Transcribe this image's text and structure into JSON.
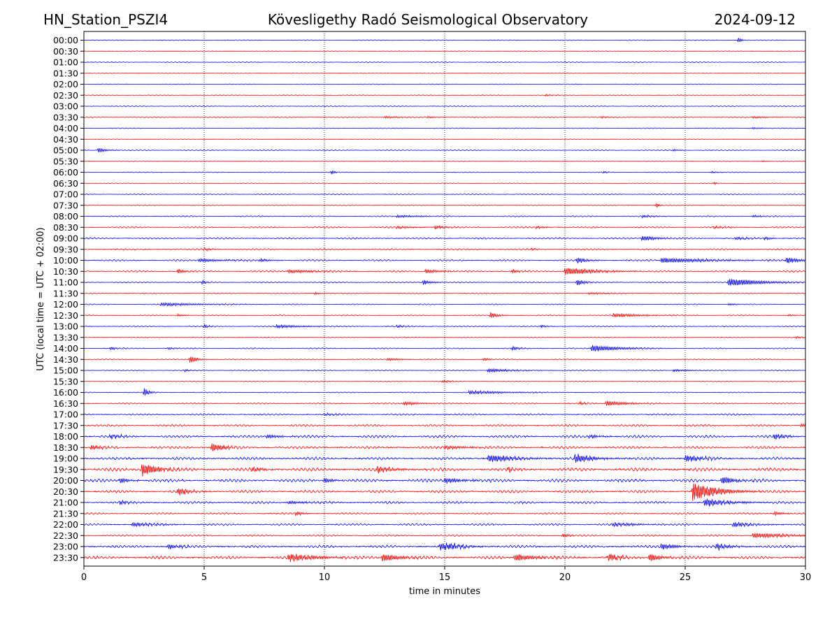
{
  "chart_data": {
    "type": "line",
    "title_left": "HN_Station_PSZI4",
    "title_center": "Kövesligethy Radó Seismological Observatory",
    "title_right": "2024-09-12",
    "xlabel": "time in minutes",
    "ylabel": "UTC (local time = UTC + 02:00)",
    "xlim": [
      0,
      30
    ],
    "x_ticks": [
      0,
      5,
      10,
      15,
      20,
      25,
      30
    ],
    "x_grid_minutes": [
      5,
      10,
      15,
      20,
      25
    ],
    "rows": [
      {
        "label": "00:00",
        "color": "#0000ff",
        "noise": 0.5,
        "events": [
          {
            "t": 27.2,
            "amp": 4,
            "dur": 0.15
          }
        ]
      },
      {
        "label": "00:30",
        "color": "#ff0000",
        "noise": 0.4,
        "events": []
      },
      {
        "label": "01:00",
        "color": "#0000ff",
        "noise": 0.5,
        "events": []
      },
      {
        "label": "01:30",
        "color": "#ff0000",
        "noise": 0.4,
        "events": []
      },
      {
        "label": "02:00",
        "color": "#0000ff",
        "noise": 0.4,
        "events": []
      },
      {
        "label": "02:30",
        "color": "#ff0000",
        "noise": 0.5,
        "events": [
          {
            "t": 19.2,
            "amp": 1.5,
            "dur": 0.3
          }
        ]
      },
      {
        "label": "03:00",
        "color": "#0000ff",
        "noise": 0.5,
        "events": []
      },
      {
        "label": "03:30",
        "color": "#ff0000",
        "noise": 0.6,
        "events": [
          {
            "t": 12.5,
            "amp": 1.5,
            "dur": 0.8
          },
          {
            "t": 14.3,
            "amp": 1.5,
            "dur": 0.4
          },
          {
            "t": 21.5,
            "amp": 1.5,
            "dur": 0.4
          },
          {
            "t": 27.8,
            "amp": 1.5,
            "dur": 0.8
          }
        ]
      },
      {
        "label": "04:00",
        "color": "#0000ff",
        "noise": 0.5,
        "events": [
          {
            "t": 27.8,
            "amp": 1.2,
            "dur": 0.5
          }
        ]
      },
      {
        "label": "04:30",
        "color": "#ff0000",
        "noise": 0.4,
        "events": []
      },
      {
        "label": "05:00",
        "color": "#0000ff",
        "noise": 0.6,
        "events": [
          {
            "t": 0.6,
            "amp": 4,
            "dur": 0.3
          },
          {
            "t": 24.5,
            "amp": 1.5,
            "dur": 0.3
          }
        ]
      },
      {
        "label": "05:30",
        "color": "#ff0000",
        "noise": 0.4,
        "events": [
          {
            "t": 28.2,
            "amp": 1.2,
            "dur": 0.2
          }
        ]
      },
      {
        "label": "06:00",
        "color": "#0000ff",
        "noise": 0.5,
        "events": [
          {
            "t": 10.3,
            "amp": 4,
            "dur": 0.12
          },
          {
            "t": 21.6,
            "amp": 2,
            "dur": 0.15
          },
          {
            "t": 26.1,
            "amp": 1.5,
            "dur": 0.3
          }
        ]
      },
      {
        "label": "06:30",
        "color": "#ff0000",
        "noise": 0.4,
        "events": [
          {
            "t": 26.2,
            "amp": 2,
            "dur": 0.12
          }
        ]
      },
      {
        "label": "07:00",
        "color": "#0000ff",
        "noise": 0.6,
        "events": []
      },
      {
        "label": "07:30",
        "color": "#ff0000",
        "noise": 0.5,
        "events": [
          {
            "t": 23.8,
            "amp": 4,
            "dur": 0.12
          }
        ]
      },
      {
        "label": "08:00",
        "color": "#0000ff",
        "noise": 0.7,
        "events": [
          {
            "t": 13.0,
            "amp": 2,
            "dur": 1.0
          },
          {
            "t": 23.2,
            "amp": 1.8,
            "dur": 0.6
          },
          {
            "t": 27.8,
            "amp": 1.8,
            "dur": 0.4
          }
        ]
      },
      {
        "label": "08:30",
        "color": "#ff0000",
        "noise": 0.9,
        "events": [
          {
            "t": 13.0,
            "amp": 2,
            "dur": 0.8
          },
          {
            "t": 14.6,
            "amp": 2.5,
            "dur": 0.5
          },
          {
            "t": 18.8,
            "amp": 2,
            "dur": 0.4
          },
          {
            "t": 26.2,
            "amp": 2,
            "dur": 0.5
          }
        ]
      },
      {
        "label": "09:00",
        "color": "#0000ff",
        "noise": 1.0,
        "events": [
          {
            "t": 23.2,
            "amp": 4,
            "dur": 0.6
          },
          {
            "t": 27.1,
            "amp": 2.5,
            "dur": 0.5
          },
          {
            "t": 28.3,
            "amp": 2.5,
            "dur": 0.3
          }
        ]
      },
      {
        "label": "09:30",
        "color": "#ff0000",
        "noise": 0.9,
        "events": [
          {
            "t": 5.0,
            "amp": 2,
            "dur": 0.3
          },
          {
            "t": 18.6,
            "amp": 2,
            "dur": 0.2
          }
        ]
      },
      {
        "label": "10:00",
        "color": "#0000ff",
        "noise": 1.0,
        "events": [
          {
            "t": 4.8,
            "amp": 2.5,
            "dur": 1.2
          },
          {
            "t": 7.3,
            "amp": 2.5,
            "dur": 0.4
          },
          {
            "t": 20.5,
            "amp": 5,
            "dur": 0.4
          },
          {
            "t": 24.0,
            "amp": 4,
            "dur": 2.0
          },
          {
            "t": 29.2,
            "amp": 5,
            "dur": 0.6
          }
        ]
      },
      {
        "label": "10:30",
        "color": "#ff0000",
        "noise": 1.0,
        "events": [
          {
            "t": 3.9,
            "amp": 4,
            "dur": 0.3
          },
          {
            "t": 8.5,
            "amp": 2.5,
            "dur": 1.4
          },
          {
            "t": 14.2,
            "amp": 3,
            "dur": 0.6
          },
          {
            "t": 17.8,
            "amp": 3,
            "dur": 0.3
          },
          {
            "t": 20.0,
            "amp": 6,
            "dur": 1.2
          }
        ]
      },
      {
        "label": "11:00",
        "color": "#0000ff",
        "noise": 0.7,
        "events": [
          {
            "t": 4.9,
            "amp": 3,
            "dur": 0.2
          },
          {
            "t": 14.1,
            "amp": 4,
            "dur": 0.3
          },
          {
            "t": 20.5,
            "amp": 5,
            "dur": 0.3
          },
          {
            "t": 26.8,
            "amp": 6,
            "dur": 1.4
          }
        ]
      },
      {
        "label": "11:30",
        "color": "#ff0000",
        "noise": 0.6,
        "events": [
          {
            "t": 9.6,
            "amp": 2,
            "dur": 0.2
          },
          {
            "t": 21.0,
            "amp": 1.5,
            "dur": 1.0
          }
        ]
      },
      {
        "label": "12:00",
        "color": "#0000ff",
        "noise": 0.6,
        "events": [
          {
            "t": 3.2,
            "amp": 2.5,
            "dur": 1.8
          },
          {
            "t": 26.8,
            "amp": 1.5,
            "dur": 0.3
          }
        ]
      },
      {
        "label": "12:30",
        "color": "#ff0000",
        "noise": 0.6,
        "events": [
          {
            "t": 3.9,
            "amp": 2,
            "dur": 0.3
          },
          {
            "t": 16.9,
            "amp": 6,
            "dur": 0.25
          },
          {
            "t": 22.0,
            "amp": 3,
            "dur": 1.2
          },
          {
            "t": 29.3,
            "amp": 1.5,
            "dur": 0.3
          }
        ]
      },
      {
        "label": "13:00",
        "color": "#0000ff",
        "noise": 0.7,
        "events": [
          {
            "t": 5.0,
            "amp": 3,
            "dur": 0.2
          },
          {
            "t": 8.0,
            "amp": 2.5,
            "dur": 1.2
          },
          {
            "t": 13.0,
            "amp": 2,
            "dur": 0.4
          },
          {
            "t": 19.0,
            "amp": 2.5,
            "dur": 0.2
          }
        ]
      },
      {
        "label": "13:30",
        "color": "#ff0000",
        "noise": 0.5,
        "events": [
          {
            "t": 29.6,
            "amp": 1.5,
            "dur": 0.5
          }
        ]
      },
      {
        "label": "14:00",
        "color": "#0000ff",
        "noise": 0.7,
        "events": [
          {
            "t": 1.1,
            "amp": 3,
            "dur": 0.2
          },
          {
            "t": 3.5,
            "amp": 2,
            "dur": 0.2
          },
          {
            "t": 17.8,
            "amp": 3,
            "dur": 0.3
          },
          {
            "t": 21.1,
            "amp": 5,
            "dur": 1.2
          }
        ]
      },
      {
        "label": "14:30",
        "color": "#ff0000",
        "noise": 0.6,
        "events": [
          {
            "t": 4.4,
            "amp": 7,
            "dur": 0.25
          },
          {
            "t": 12.6,
            "amp": 2,
            "dur": 0.8
          },
          {
            "t": 16.6,
            "amp": 2,
            "dur": 0.3
          }
        ]
      },
      {
        "label": "15:00",
        "color": "#0000ff",
        "noise": 0.6,
        "events": [
          {
            "t": 4.2,
            "amp": 1.8,
            "dur": 0.3
          },
          {
            "t": 16.8,
            "amp": 3,
            "dur": 1.0
          },
          {
            "t": 24.5,
            "amp": 2,
            "dur": 0.6
          }
        ]
      },
      {
        "label": "15:30",
        "color": "#ff0000",
        "noise": 0.5,
        "events": [
          {
            "t": 14.9,
            "amp": 2,
            "dur": 0.4
          }
        ]
      },
      {
        "label": "16:00",
        "color": "#0000ff",
        "noise": 0.6,
        "events": [
          {
            "t": 2.5,
            "amp": 7,
            "dur": 0.2
          },
          {
            "t": 16.0,
            "amp": 2.5,
            "dur": 1.8
          }
        ]
      },
      {
        "label": "16:30",
        "color": "#ff0000",
        "noise": 0.8,
        "events": [
          {
            "t": 13.3,
            "amp": 3,
            "dur": 0.7
          },
          {
            "t": 20.6,
            "amp": 2.5,
            "dur": 0.3
          },
          {
            "t": 21.7,
            "amp": 4,
            "dur": 0.9
          }
        ]
      },
      {
        "label": "17:00",
        "color": "#0000ff",
        "noise": 1.0,
        "events": [
          {
            "t": 10.0,
            "amp": 2,
            "dur": 0.4
          }
        ]
      },
      {
        "label": "17:30",
        "color": "#ff0000",
        "noise": 1.2,
        "events": [
          {
            "t": 29.8,
            "amp": 3,
            "dur": 0.4
          }
        ]
      },
      {
        "label": "18:00",
        "color": "#0000ff",
        "noise": 1.5,
        "events": [
          {
            "t": 1.1,
            "amp": 3,
            "dur": 0.6
          },
          {
            "t": 7.6,
            "amp": 3,
            "dur": 0.6
          },
          {
            "t": 21.0,
            "amp": 3,
            "dur": 0.5
          },
          {
            "t": 28.7,
            "amp": 5,
            "dur": 0.5
          }
        ]
      },
      {
        "label": "18:30",
        "color": "#ff0000",
        "noise": 1.5,
        "events": [
          {
            "t": 0.3,
            "amp": 4,
            "dur": 0.4
          },
          {
            "t": 5.3,
            "amp": 7,
            "dur": 0.6
          },
          {
            "t": 5.9,
            "amp": 4,
            "dur": 0.4
          },
          {
            "t": 15.0,
            "amp": 3,
            "dur": 1.0
          }
        ]
      },
      {
        "label": "19:00",
        "color": "#0000ff",
        "noise": 1.6,
        "events": [
          {
            "t": 16.8,
            "amp": 6,
            "dur": 1.2
          },
          {
            "t": 20.4,
            "amp": 7,
            "dur": 0.8
          },
          {
            "t": 25.0,
            "amp": 5,
            "dur": 0.8
          }
        ]
      },
      {
        "label": "19:30",
        "color": "#ff0000",
        "noise": 2.0,
        "events": [
          {
            "t": 2.4,
            "amp": 11,
            "dur": 0.6
          },
          {
            "t": 7.0,
            "amp": 4,
            "dur": 0.5
          },
          {
            "t": 12.2,
            "amp": 5,
            "dur": 0.6
          },
          {
            "t": 17.6,
            "amp": 4,
            "dur": 0.3
          }
        ]
      },
      {
        "label": "20:00",
        "color": "#0000ff",
        "noise": 1.8,
        "events": [
          {
            "t": 1.5,
            "amp": 4,
            "dur": 0.4
          },
          {
            "t": 10.0,
            "amp": 4,
            "dur": 0.4
          },
          {
            "t": 15.0,
            "amp": 4,
            "dur": 1.0
          },
          {
            "t": 26.5,
            "amp": 6,
            "dur": 0.6
          }
        ]
      },
      {
        "label": "20:30",
        "color": "#ff0000",
        "noise": 1.6,
        "events": [
          {
            "t": 3.9,
            "amp": 6,
            "dur": 0.5
          },
          {
            "t": 25.3,
            "amp": 14,
            "dur": 1.0
          }
        ]
      },
      {
        "label": "21:00",
        "color": "#0000ff",
        "noise": 1.4,
        "events": [
          {
            "t": 1.5,
            "amp": 3,
            "dur": 0.4
          },
          {
            "t": 8.5,
            "amp": 2.5,
            "dur": 0.8
          },
          {
            "t": 25.8,
            "amp": 6,
            "dur": 1.0
          }
        ]
      },
      {
        "label": "21:30",
        "color": "#ff0000",
        "noise": 1.1,
        "events": [
          {
            "t": 8.8,
            "amp": 2.5,
            "dur": 0.4
          },
          {
            "t": 28.7,
            "amp": 3,
            "dur": 0.4
          }
        ]
      },
      {
        "label": "22:00",
        "color": "#0000ff",
        "noise": 1.2,
        "events": [
          {
            "t": 2.0,
            "amp": 3,
            "dur": 1.2
          },
          {
            "t": 22.0,
            "amp": 3,
            "dur": 1.0
          },
          {
            "t": 27.0,
            "amp": 4,
            "dur": 0.8
          }
        ]
      },
      {
        "label": "22:30",
        "color": "#ff0000",
        "noise": 1.0,
        "events": [
          {
            "t": 19.9,
            "amp": 3,
            "dur": 0.3
          },
          {
            "t": 27.8,
            "amp": 4,
            "dur": 1.6
          }
        ]
      },
      {
        "label": "23:00",
        "color": "#0000ff",
        "noise": 1.6,
        "events": [
          {
            "t": 3.5,
            "amp": 4,
            "dur": 0.5
          },
          {
            "t": 14.8,
            "amp": 6,
            "dur": 0.8
          },
          {
            "t": 15.2,
            "amp": 4,
            "dur": 0.6
          },
          {
            "t": 24.0,
            "amp": 5,
            "dur": 0.6
          },
          {
            "t": 26.3,
            "amp": 5,
            "dur": 0.6
          }
        ]
      },
      {
        "label": "23:30",
        "color": "#ff0000",
        "noise": 1.8,
        "events": [
          {
            "t": 8.5,
            "amp": 6,
            "dur": 1.2
          },
          {
            "t": 12.4,
            "amp": 6,
            "dur": 0.8
          },
          {
            "t": 17.9,
            "amp": 5,
            "dur": 1.0
          },
          {
            "t": 21.8,
            "amp": 6,
            "dur": 0.5
          },
          {
            "t": 23.5,
            "amp": 6,
            "dur": 0.5
          }
        ]
      }
    ]
  }
}
